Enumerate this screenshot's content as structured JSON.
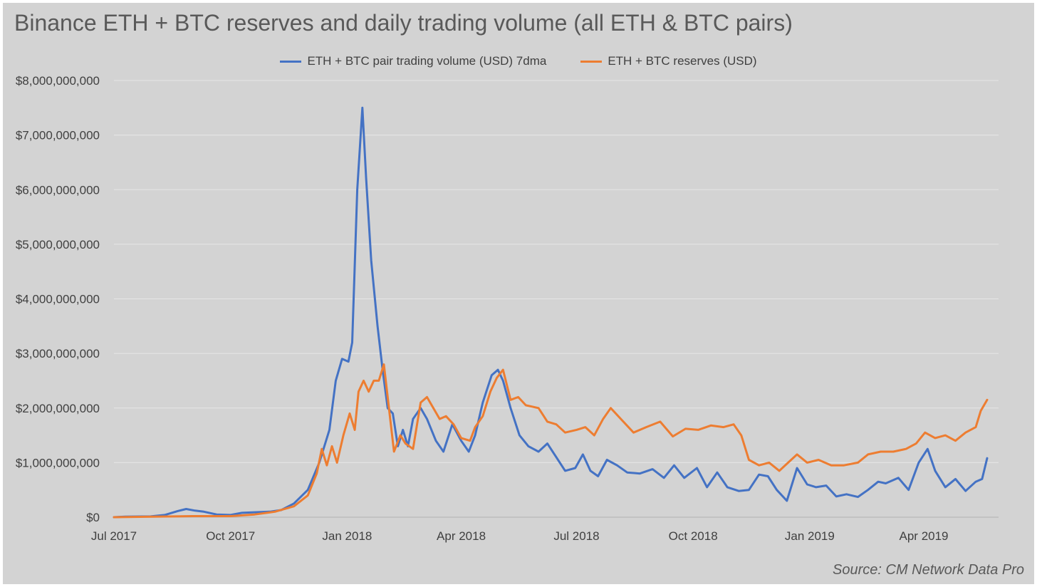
{
  "chart_data": {
    "type": "line",
    "title": "Binance ETH + BTC reserves and daily trading volume (all ETH & BTC pairs)",
    "source": "Source: CM Network Data Pro",
    "xlabel": "",
    "ylabel": "",
    "x_ticks": [
      "Jul 2017",
      "Oct 2017",
      "Jan 2018",
      "Apr 2018",
      "Jul 2018",
      "Oct 2018",
      "Jan 2019",
      "Apr 2019"
    ],
    "y_ticks": [
      "$0",
      "$1,000,000,000",
      "$2,000,000,000",
      "$3,000,000,000",
      "$4,000,000,000",
      "$5,000,000,000",
      "$6,000,000,000",
      "$7,000,000,000",
      "$8,000,000,000"
    ],
    "xlim": [
      "2017-07-01",
      "2019-05-30"
    ],
    "ylim": [
      0,
      8000000000
    ],
    "grid": true,
    "legend_position": "top",
    "series": [
      {
        "name": "ETH + BTC pair trading volume (USD) 7dma",
        "color": "#4472c4",
        "points": [
          [
            "2017-07-01",
            0
          ],
          [
            "2017-07-10",
            10000000
          ],
          [
            "2017-07-30",
            15000000
          ],
          [
            "2017-08-10",
            40000000
          ],
          [
            "2017-08-20",
            110000000
          ],
          [
            "2017-08-27",
            150000000
          ],
          [
            "2017-09-03",
            120000000
          ],
          [
            "2017-09-10",
            100000000
          ],
          [
            "2017-09-20",
            50000000
          ],
          [
            "2017-10-01",
            40000000
          ],
          [
            "2017-10-10",
            80000000
          ],
          [
            "2017-10-20",
            90000000
          ],
          [
            "2017-11-01",
            100000000
          ],
          [
            "2017-11-10",
            130000000
          ],
          [
            "2017-11-20",
            250000000
          ],
          [
            "2017-12-01",
            500000000
          ],
          [
            "2017-12-10",
            1000000000
          ],
          [
            "2017-12-18",
            1600000000
          ],
          [
            "2017-12-23",
            2500000000
          ],
          [
            "2017-12-28",
            2900000000
          ],
          [
            "2018-01-02",
            2850000000
          ],
          [
            "2018-01-05",
            3200000000
          ],
          [
            "2018-01-09",
            6000000000
          ],
          [
            "2018-01-13",
            7500000000
          ],
          [
            "2018-01-16",
            6200000000
          ],
          [
            "2018-01-20",
            4700000000
          ],
          [
            "2018-01-25",
            3500000000
          ],
          [
            "2018-01-29",
            2700000000
          ],
          [
            "2018-02-02",
            2000000000
          ],
          [
            "2018-02-06",
            1900000000
          ],
          [
            "2018-02-10",
            1300000000
          ],
          [
            "2018-02-14",
            1600000000
          ],
          [
            "2018-02-18",
            1300000000
          ],
          [
            "2018-02-22",
            1800000000
          ],
          [
            "2018-02-28",
            2000000000
          ],
          [
            "2018-03-05",
            1800000000
          ],
          [
            "2018-03-12",
            1400000000
          ],
          [
            "2018-03-18",
            1200000000
          ],
          [
            "2018-03-25",
            1700000000
          ],
          [
            "2018-04-01",
            1400000000
          ],
          [
            "2018-04-07",
            1200000000
          ],
          [
            "2018-04-12",
            1500000000
          ],
          [
            "2018-04-18",
            2100000000
          ],
          [
            "2018-04-25",
            2600000000
          ],
          [
            "2018-04-30",
            2700000000
          ],
          [
            "2018-05-04",
            2500000000
          ],
          [
            "2018-05-10",
            2000000000
          ],
          [
            "2018-05-17",
            1500000000
          ],
          [
            "2018-05-24",
            1300000000
          ],
          [
            "2018-06-01",
            1200000000
          ],
          [
            "2018-06-08",
            1350000000
          ],
          [
            "2018-06-15",
            1100000000
          ],
          [
            "2018-06-22",
            850000000
          ],
          [
            "2018-06-30",
            900000000
          ],
          [
            "2018-07-06",
            1150000000
          ],
          [
            "2018-07-12",
            850000000
          ],
          [
            "2018-07-18",
            750000000
          ],
          [
            "2018-07-25",
            1050000000
          ],
          [
            "2018-08-02",
            950000000
          ],
          [
            "2018-08-10",
            820000000
          ],
          [
            "2018-08-20",
            800000000
          ],
          [
            "2018-08-30",
            880000000
          ],
          [
            "2018-09-08",
            720000000
          ],
          [
            "2018-09-16",
            950000000
          ],
          [
            "2018-09-24",
            720000000
          ],
          [
            "2018-10-04",
            900000000
          ],
          [
            "2018-10-12",
            550000000
          ],
          [
            "2018-10-20",
            820000000
          ],
          [
            "2018-10-28",
            550000000
          ],
          [
            "2018-11-06",
            480000000
          ],
          [
            "2018-11-14",
            500000000
          ],
          [
            "2018-11-22",
            780000000
          ],
          [
            "2018-11-29",
            750000000
          ],
          [
            "2018-12-06",
            500000000
          ],
          [
            "2018-12-14",
            300000000
          ],
          [
            "2018-12-22",
            900000000
          ],
          [
            "2018-12-30",
            600000000
          ],
          [
            "2019-01-06",
            550000000
          ],
          [
            "2019-01-14",
            580000000
          ],
          [
            "2019-01-22",
            380000000
          ],
          [
            "2019-01-30",
            420000000
          ],
          [
            "2019-02-08",
            370000000
          ],
          [
            "2019-02-16",
            500000000
          ],
          [
            "2019-02-24",
            650000000
          ],
          [
            "2019-03-02",
            620000000
          ],
          [
            "2019-03-12",
            720000000
          ],
          [
            "2019-03-20",
            500000000
          ],
          [
            "2019-03-28",
            1000000000
          ],
          [
            "2019-04-04",
            1250000000
          ],
          [
            "2019-04-10",
            850000000
          ],
          [
            "2019-04-18",
            550000000
          ],
          [
            "2019-04-26",
            700000000
          ],
          [
            "2019-05-04",
            480000000
          ],
          [
            "2019-05-12",
            650000000
          ],
          [
            "2019-05-17",
            700000000
          ],
          [
            "2019-05-21",
            1080000000
          ]
        ]
      },
      {
        "name": "ETH + BTC reserves (USD)",
        "color": "#ed7d31",
        "points": [
          [
            "2017-07-01",
            0
          ],
          [
            "2017-08-01",
            10000000
          ],
          [
            "2017-09-01",
            20000000
          ],
          [
            "2017-10-01",
            20000000
          ],
          [
            "2017-10-20",
            50000000
          ],
          [
            "2017-11-05",
            100000000
          ],
          [
            "2017-11-20",
            200000000
          ],
          [
            "2017-12-01",
            400000000
          ],
          [
            "2017-12-08",
            800000000
          ],
          [
            "2017-12-12",
            1250000000
          ],
          [
            "2017-12-16",
            950000000
          ],
          [
            "2017-12-20",
            1300000000
          ],
          [
            "2017-12-24",
            1000000000
          ],
          [
            "2017-12-29",
            1500000000
          ],
          [
            "2018-01-03",
            1900000000
          ],
          [
            "2018-01-07",
            1600000000
          ],
          [
            "2018-01-10",
            2300000000
          ],
          [
            "2018-01-14",
            2500000000
          ],
          [
            "2018-01-18",
            2300000000
          ],
          [
            "2018-01-22",
            2500000000
          ],
          [
            "2018-01-26",
            2500000000
          ],
          [
            "2018-01-30",
            2800000000
          ],
          [
            "2018-02-03",
            2000000000
          ],
          [
            "2018-02-07",
            1200000000
          ],
          [
            "2018-02-12",
            1500000000
          ],
          [
            "2018-02-16",
            1350000000
          ],
          [
            "2018-02-22",
            1250000000
          ],
          [
            "2018-02-28",
            2100000000
          ],
          [
            "2018-03-05",
            2200000000
          ],
          [
            "2018-03-10",
            2000000000
          ],
          [
            "2018-03-15",
            1800000000
          ],
          [
            "2018-03-20",
            1850000000
          ],
          [
            "2018-03-26",
            1700000000
          ],
          [
            "2018-04-01",
            1450000000
          ],
          [
            "2018-04-08",
            1400000000
          ],
          [
            "2018-04-12",
            1650000000
          ],
          [
            "2018-04-18",
            1850000000
          ],
          [
            "2018-04-24",
            2300000000
          ],
          [
            "2018-04-29",
            2550000000
          ],
          [
            "2018-05-04",
            2700000000
          ],
          [
            "2018-05-10",
            2150000000
          ],
          [
            "2018-05-16",
            2200000000
          ],
          [
            "2018-05-22",
            2050000000
          ],
          [
            "2018-06-01",
            2000000000
          ],
          [
            "2018-06-08",
            1750000000
          ],
          [
            "2018-06-15",
            1700000000
          ],
          [
            "2018-06-22",
            1550000000
          ],
          [
            "2018-07-01",
            1600000000
          ],
          [
            "2018-07-08",
            1650000000
          ],
          [
            "2018-07-15",
            1500000000
          ],
          [
            "2018-07-22",
            1800000000
          ],
          [
            "2018-07-28",
            2000000000
          ],
          [
            "2018-08-05",
            1800000000
          ],
          [
            "2018-08-15",
            1550000000
          ],
          [
            "2018-08-25",
            1650000000
          ],
          [
            "2018-09-05",
            1750000000
          ],
          [
            "2018-09-15",
            1480000000
          ],
          [
            "2018-09-25",
            1620000000
          ],
          [
            "2018-10-05",
            1600000000
          ],
          [
            "2018-10-15",
            1680000000
          ],
          [
            "2018-10-25",
            1650000000
          ],
          [
            "2018-11-02",
            1700000000
          ],
          [
            "2018-11-08",
            1500000000
          ],
          [
            "2018-11-14",
            1050000000
          ],
          [
            "2018-11-22",
            950000000
          ],
          [
            "2018-11-30",
            1000000000
          ],
          [
            "2018-12-08",
            850000000
          ],
          [
            "2018-12-15",
            1000000000
          ],
          [
            "2018-12-22",
            1150000000
          ],
          [
            "2018-12-30",
            1000000000
          ],
          [
            "2019-01-08",
            1050000000
          ],
          [
            "2019-01-18",
            950000000
          ],
          [
            "2019-01-28",
            950000000
          ],
          [
            "2019-02-08",
            1000000000
          ],
          [
            "2019-02-16",
            1150000000
          ],
          [
            "2019-02-26",
            1200000000
          ],
          [
            "2019-03-08",
            1200000000
          ],
          [
            "2019-03-18",
            1250000000
          ],
          [
            "2019-03-26",
            1350000000
          ],
          [
            "2019-04-02",
            1550000000
          ],
          [
            "2019-04-10",
            1450000000
          ],
          [
            "2019-04-18",
            1500000000
          ],
          [
            "2019-04-26",
            1400000000
          ],
          [
            "2019-05-04",
            1550000000
          ],
          [
            "2019-05-12",
            1650000000
          ],
          [
            "2019-05-16",
            1950000000
          ],
          [
            "2019-05-21",
            2150000000
          ]
        ]
      }
    ]
  }
}
